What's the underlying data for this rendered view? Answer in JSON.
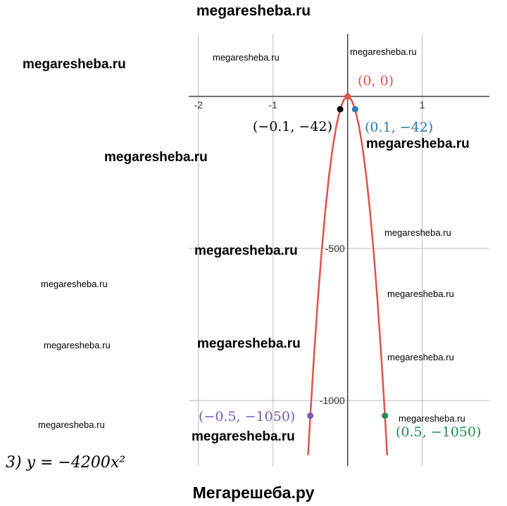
{
  "title": "megaresheba.ru",
  "footer": "Мегарешеба.ру",
  "equation": "3) y = −4200x²",
  "watermarks": [
    "megaresheba.ru",
    "megaresheba.ru",
    "megaresheba.ru",
    "megaresheba.ru",
    "megaresheba.ru",
    "megaresheba.ru",
    "megaresheba.ru",
    "megaresheba.ru",
    "megaresheba.ru",
    "megaresheba.ru",
    "megaresheba.ru",
    "megaresheba.ru",
    "megaresheba.ru",
    "megaresheba.ru",
    "megaresheba.ru"
  ],
  "chart_data": {
    "type": "line",
    "xlim": [
      -2.13,
      1.9
    ],
    "ylim": [
      -1215,
      206
    ],
    "xticks": [
      -2,
      -1,
      1
    ],
    "yticks": [
      -1000,
      -500
    ],
    "grid": true,
    "series": [
      {
        "color": "#e0524a",
        "x": [
          -0.53,
          -0.5,
          -0.45,
          -0.4,
          -0.35,
          -0.3,
          -0.25,
          -0.2,
          -0.15,
          -0.1,
          -0.05,
          0,
          0.05,
          0.1,
          0.15,
          0.2,
          0.25,
          0.3,
          0.35,
          0.4,
          0.45,
          0.5,
          0.53
        ],
        "values": [
          -1179.78,
          -1050,
          -850.5,
          -672,
          -514.5,
          -378,
          -262.5,
          -168,
          -94.5,
          -42,
          -10.5,
          0,
          -10.5,
          -42,
          -94.5,
          -168,
          -262.5,
          -378,
          -514.5,
          -672,
          -850.5,
          -1050,
          -1179.78
        ]
      }
    ],
    "points": [
      {
        "x": 0,
        "y": 0,
        "label": "(0, 0)",
        "color": "#e0524a"
      },
      {
        "x": -0.1,
        "y": -42,
        "label": "(−0.1, −42)",
        "color": "#000000"
      },
      {
        "x": 0.1,
        "y": -42,
        "label": "(0.1, −42)",
        "color": "#2a7ab8"
      },
      {
        "x": -0.5,
        "y": -1050,
        "label": "(−0.5, −1050)",
        "color": "#7b5ab0"
      },
      {
        "x": 0.5,
        "y": -1050,
        "label": "(0.5, −1050)",
        "color": "#1f8f50"
      }
    ]
  }
}
